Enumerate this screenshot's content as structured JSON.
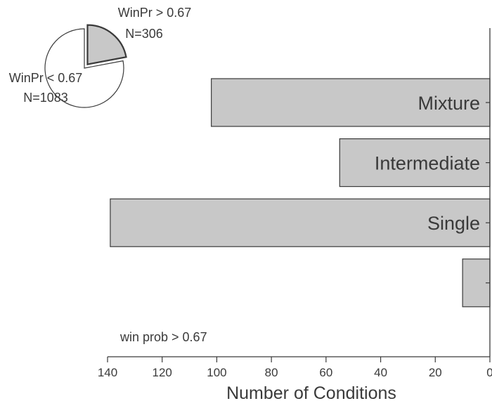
{
  "chart_data": [
    {
      "type": "bar",
      "orientation": "horizontal",
      "x_direction": "reversed",
      "categories": [
        "Mixture",
        "Intermediate",
        "Single",
        ""
      ],
      "values": [
        102,
        55,
        139,
        10
      ],
      "xlabel": "Number of Conditions",
      "xlim": [
        0,
        140
      ],
      "xticks": [
        140,
        120,
        100,
        80,
        60,
        40,
        20,
        0
      ],
      "annotation": "win prob > 0.67",
      "grid": false,
      "colors": {
        "bar_fill": "#c8c8c8",
        "bar_stroke": "#3a3a3a",
        "text": "#3a3a3a"
      }
    },
    {
      "type": "pie",
      "slices": [
        {
          "label": "WinPr > 0.67",
          "count_label": "N=306",
          "value": 306,
          "exploded": true
        },
        {
          "label": "WinPr < 0.67",
          "count_label": "N=1083",
          "value": 1083,
          "exploded": false
        }
      ],
      "colors": {
        "highlight_fill": "#c8c8c8",
        "other_fill": "#ffffff",
        "stroke": "#3a3a3a"
      }
    }
  ]
}
